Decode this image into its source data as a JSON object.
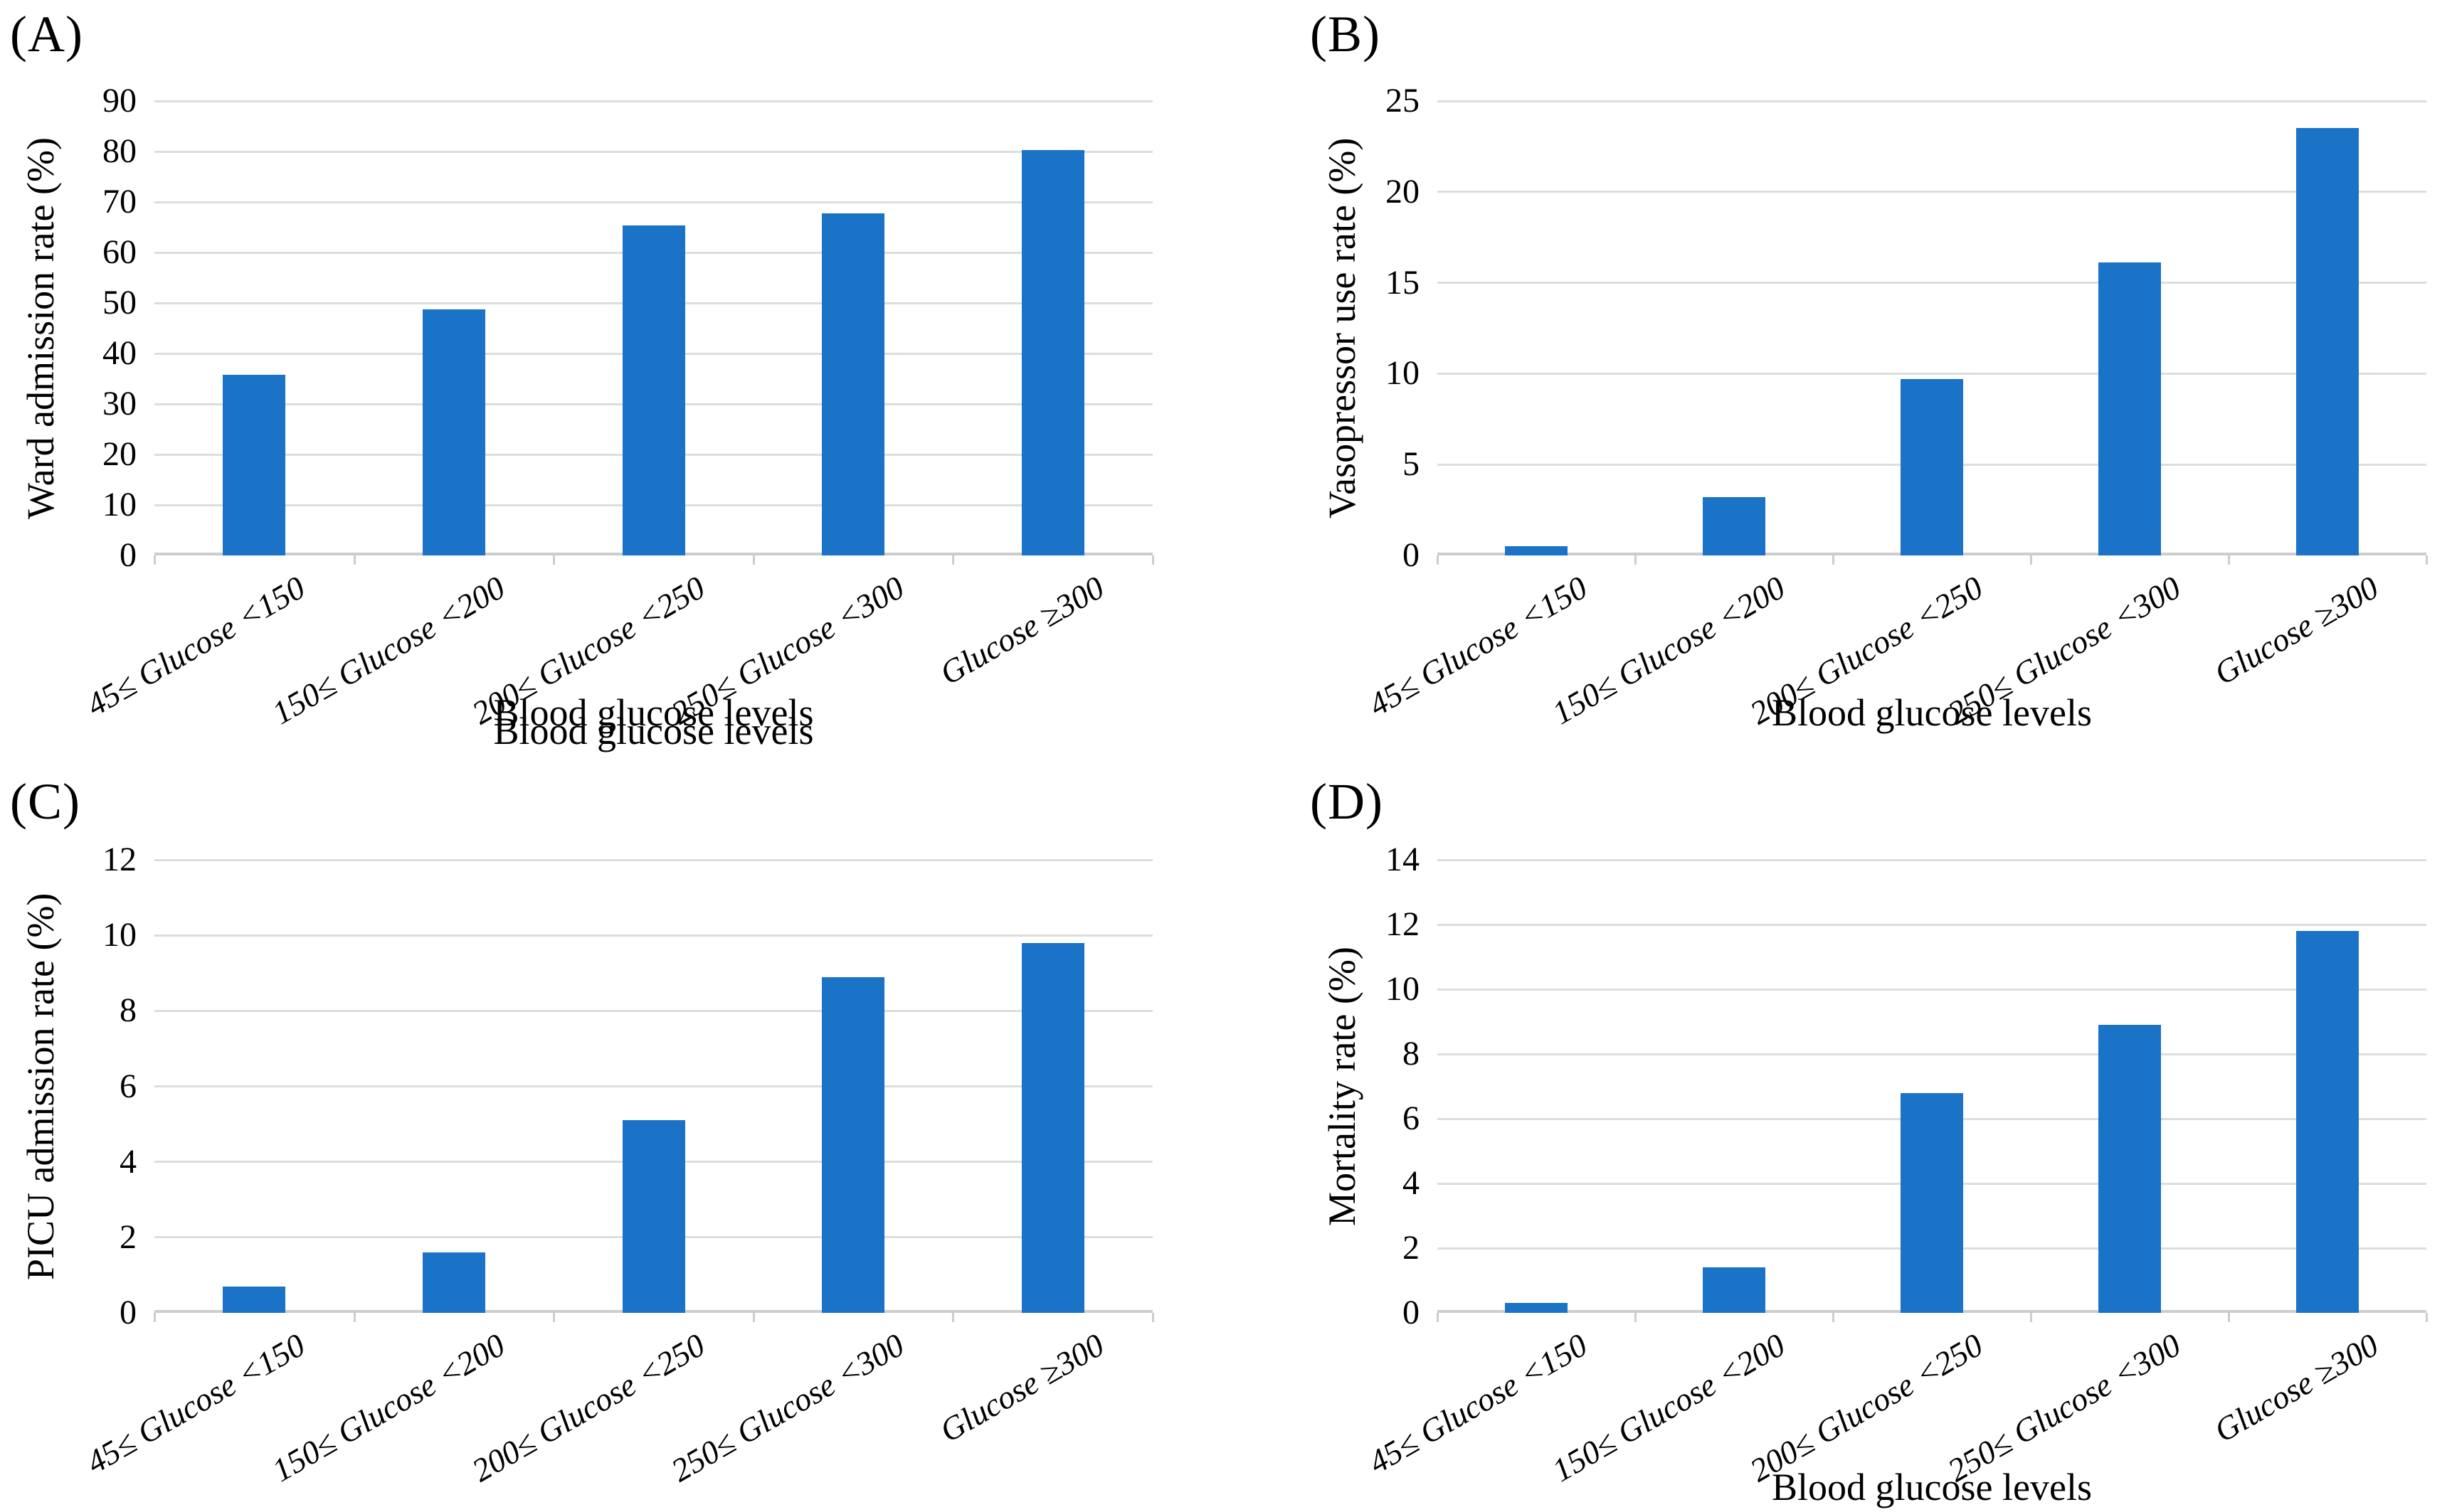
{
  "figure": {
    "background": "#FFFFFF",
    "bar_color": "#1B73C7",
    "gridline_color": "#DDDDDD",
    "axis_color": "#CDCDCD",
    "text_color": "#000000"
  },
  "chart_data": [
    {
      "type": "bar",
      "panel_label": "(A)",
      "ylabel": "Ward admission rate (%)",
      "xlabel": "Blood glucose levels",
      "categories": [
        "45≤ Glucose <150",
        "150≤ Glucose <200",
        "200≤ Glucose <250",
        "250≤ Glucose <300",
        "Glucose ≥300"
      ],
      "values": [
        35.8,
        48.8,
        65.3,
        67.7,
        80.3
      ],
      "ylim": [
        0,
        90
      ],
      "yticks": [
        0,
        10,
        20,
        30,
        40,
        50,
        60,
        70,
        80,
        90
      ],
      "grid": true,
      "legend": "none"
    },
    {
      "type": "bar",
      "panel_label": "(B)",
      "ylabel": "Vasopressor use rate (%)",
      "xlabel": "Blood glucose levels",
      "categories": [
        "45≤ Glucose <150",
        "150≤ Glucose <200",
        "200≤ Glucose <250",
        "250≤ Glucose <300",
        "Glucose ≥300"
      ],
      "values": [
        0.5,
        3.2,
        9.7,
        16.1,
        23.5
      ],
      "ylim": [
        0,
        25
      ],
      "yticks": [
        0,
        5,
        10,
        15,
        20,
        25
      ],
      "grid": true,
      "legend": "none"
    },
    {
      "type": "bar",
      "panel_label": "(C)",
      "ylabel": "PICU admission rate (%)",
      "xlabel": "Blood glucose levels",
      "categories": [
        "45≤ Glucose <150",
        "150≤ Glucose <200",
        "200≤ Glucose <250",
        "250≤ Glucose <300",
        "Glucose ≥300"
      ],
      "values": [
        0.7,
        1.6,
        5.1,
        8.9,
        9.8
      ],
      "ylim": [
        0,
        12
      ],
      "yticks": [
        0,
        2,
        4,
        6,
        8,
        10,
        12
      ],
      "grid": true,
      "legend": "none"
    },
    {
      "type": "bar",
      "panel_label": "(D)",
      "ylabel": "Mortality rate (%)",
      "xlabel": "Blood glucose levels",
      "categories": [
        "45≤ Glucose <150",
        "150≤ Glucose <200",
        "200≤ Glucose <250",
        "250≤ Glucose <300",
        "Glucose ≥300"
      ],
      "values": [
        0.3,
        1.4,
        6.8,
        8.9,
        11.8
      ],
      "ylim": [
        0,
        14
      ],
      "yticks": [
        0,
        2,
        4,
        6,
        8,
        10,
        12,
        14
      ],
      "grid": true,
      "legend": "none"
    }
  ]
}
